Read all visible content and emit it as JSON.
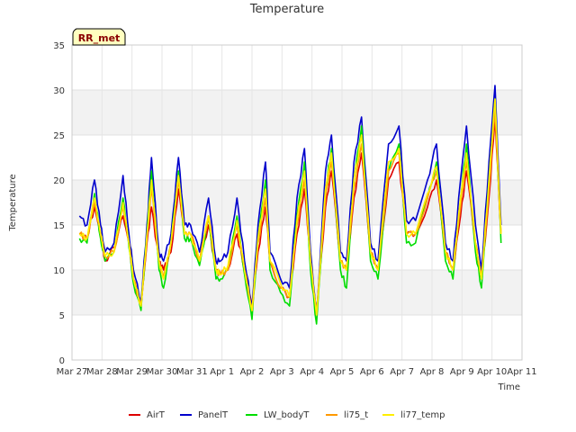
{
  "chart_data": {
    "type": "line",
    "title": "Temperature",
    "xlabel": "Time",
    "ylabel": "Temperature",
    "badge": "RR_met",
    "ylim": [
      0,
      35
    ],
    "yticks": [
      0,
      5,
      10,
      15,
      20,
      25,
      30,
      35
    ],
    "xlim": [
      0,
      15
    ],
    "xticks": [
      {
        "x": 0,
        "label": "Mar 27"
      },
      {
        "x": 1,
        "label": "Mar 28"
      },
      {
        "x": 2,
        "label": "Mar 29"
      },
      {
        "x": 3,
        "label": "Mar 30"
      },
      {
        "x": 4,
        "label": "Mar 31"
      },
      {
        "x": 5,
        "label": "Apr 1"
      },
      {
        "x": 6,
        "label": "Apr 2"
      },
      {
        "x": 7,
        "label": "Apr 3"
      },
      {
        "x": 8,
        "label": "Apr 4"
      },
      {
        "x": 9,
        "label": "Apr 5"
      },
      {
        "x": 10,
        "label": "Apr 6"
      },
      {
        "x": 11,
        "label": "Apr 7"
      },
      {
        "x": 12,
        "label": "Apr 8"
      },
      {
        "x": 13,
        "label": "Apr 9"
      },
      {
        "x": 14,
        "label": "Apr 10"
      },
      {
        "x": 15,
        "label": "Apr 11"
      }
    ],
    "grid": true,
    "legend_position": "bottom",
    "x_unit": "days since Mar 27",
    "series": [
      {
        "name": "AirT",
        "color": "#dd0000",
        "x": [
          0.25,
          0.5,
          0.75,
          0.95,
          1.1,
          1.4,
          1.7,
          1.9,
          2.05,
          2.3,
          2.5,
          2.65,
          2.9,
          3.05,
          3.3,
          3.55,
          3.75,
          3.95,
          4.25,
          4.55,
          4.8,
          4.95,
          5.2,
          5.5,
          5.75,
          6.0,
          6.2,
          6.45,
          6.6,
          6.95,
          7.25,
          7.5,
          7.75,
          7.95,
          8.15,
          8.45,
          8.65,
          8.95,
          9.15,
          9.4,
          9.65,
          9.95,
          10.2,
          10.55,
          10.9,
          11.15,
          11.45,
          11.85,
          12.15,
          12.45,
          12.7,
          12.95,
          13.15,
          13.45,
          13.65,
          13.9,
          14.1,
          14.3
        ],
        "y": [
          14,
          13.5,
          17,
          14,
          11,
          12.5,
          16,
          13,
          9,
          6,
          13,
          17,
          11,
          10,
          12,
          19,
          14,
          14,
          11,
          15,
          10,
          9.5,
          10,
          14,
          10,
          6,
          12,
          17,
          11,
          8,
          7,
          14,
          19,
          11,
          5,
          17,
          21,
          11,
          10,
          18,
          23,
          12,
          10,
          20,
          22,
          14,
          14,
          17,
          20,
          12,
          10,
          16,
          21,
          13,
          9,
          18,
          27,
          14
        ]
      },
      {
        "name": "PanelT",
        "color": "#0000cc",
        "x": [
          0.25,
          0.5,
          0.75,
          0.95,
          1.1,
          1.4,
          1.7,
          1.9,
          2.05,
          2.3,
          2.5,
          2.65,
          2.9,
          3.05,
          3.3,
          3.55,
          3.75,
          3.95,
          4.25,
          4.55,
          4.8,
          4.95,
          5.2,
          5.5,
          5.75,
          6.0,
          6.2,
          6.45,
          6.6,
          6.95,
          7.25,
          7.5,
          7.75,
          7.95,
          8.15,
          8.45,
          8.65,
          8.95,
          9.15,
          9.4,
          9.65,
          9.95,
          10.2,
          10.55,
          10.9,
          11.15,
          11.45,
          11.85,
          12.15,
          12.45,
          12.7,
          12.95,
          13.15,
          13.45,
          13.65,
          13.9,
          14.1,
          14.3
        ],
        "y": [
          16,
          15,
          20,
          15,
          12,
          13,
          20.5,
          14,
          10,
          6.5,
          15,
          22.5,
          12,
          11,
          14,
          22.5,
          15,
          15,
          12,
          18,
          11,
          11,
          12,
          18,
          11,
          6,
          15,
          22,
          12,
          9,
          8,
          18,
          23.5,
          12,
          5,
          21,
          25,
          12,
          11,
          22,
          27,
          13,
          11,
          24,
          26,
          15.5,
          15.5,
          20,
          24,
          13,
          11,
          20,
          26,
          15,
          10,
          22,
          30.5,
          15
        ]
      },
      {
        "name": "LW_bodyT",
        "color": "#00dd00",
        "x": [
          0.25,
          0.5,
          0.75,
          0.95,
          1.1,
          1.4,
          1.7,
          1.9,
          2.05,
          2.3,
          2.5,
          2.65,
          2.9,
          3.05,
          3.3,
          3.55,
          3.75,
          3.95,
          4.25,
          4.55,
          4.8,
          4.95,
          5.2,
          5.5,
          5.75,
          6.0,
          6.2,
          6.45,
          6.6,
          6.95,
          7.25,
          7.5,
          7.75,
          7.95,
          8.15,
          8.45,
          8.65,
          8.95,
          9.15,
          9.4,
          9.65,
          9.95,
          10.2,
          10.55,
          10.9,
          11.15,
          11.45,
          11.85,
          12.15,
          12.45,
          12.7,
          12.95,
          13.15,
          13.45,
          13.65,
          13.9,
          14.1,
          14.3
        ],
        "y": [
          13.5,
          13,
          18.5,
          13.5,
          11,
          12,
          18,
          12.5,
          8.5,
          5.5,
          14,
          21,
          10,
          8,
          13,
          21,
          13.5,
          13.5,
          10.5,
          16,
          9,
          9,
          10,
          16,
          9.5,
          4.5,
          13.5,
          20,
          10,
          7.5,
          6,
          16,
          22,
          10,
          4,
          19,
          23.5,
          10,
          8,
          20,
          26,
          11,
          9,
          21,
          24,
          13,
          13,
          18,
          22,
          11,
          9,
          18,
          24,
          12,
          8,
          20,
          29,
          13
        ]
      },
      {
        "name": "li75_t",
        "color": "#ff9900",
        "x": [
          0.25,
          0.5,
          0.75,
          0.95,
          1.1,
          1.4,
          1.7,
          1.9,
          2.05,
          2.3,
          2.5,
          2.65,
          2.9,
          3.05,
          3.3,
          3.55,
          3.75,
          3.95,
          4.25,
          4.55,
          4.8,
          4.95,
          5.2,
          5.5,
          5.75,
          6.0,
          6.2,
          6.45,
          6.6,
          6.95,
          7.25,
          7.5,
          7.75,
          7.95,
          8.15,
          8.45,
          8.65,
          8.95,
          9.15,
          9.4,
          9.65,
          9.95,
          10.2,
          10.55,
          10.9,
          11.15,
          11.45,
          11.85,
          12.15,
          12.45,
          12.7,
          12.95,
          13.15,
          13.45,
          13.65,
          13.9,
          14.1,
          14.3
        ],
        "y": [
          14,
          13.5,
          17.5,
          14,
          11.5,
          12,
          17,
          13,
          9,
          6,
          13.5,
          19,
          11,
          9,
          13,
          20,
          14,
          14,
          11,
          16,
          10,
          9.5,
          10,
          15,
          10,
          5.5,
          13,
          18,
          11,
          8,
          7,
          15,
          20,
          11,
          5,
          18,
          22,
          11,
          10,
          19,
          24,
          12,
          10,
          21,
          23,
          14,
          14,
          18,
          21,
          12,
          10,
          17,
          22,
          13,
          9,
          19,
          28,
          14
        ]
      },
      {
        "name": "li77_temp",
        "color": "#ffee00",
        "x": [
          0.25,
          0.5,
          0.75,
          0.95,
          1.1,
          1.4,
          1.7,
          1.9,
          2.05,
          2.3,
          2.5,
          2.65,
          2.9,
          3.05,
          3.3,
          3.55,
          3.75,
          3.95,
          4.25,
          4.55,
          4.8,
          4.95,
          5.2,
          5.5,
          5.75,
          6.0,
          6.2,
          6.45,
          6.6,
          6.95,
          7.25,
          7.5,
          7.75,
          7.95,
          8.15,
          8.45,
          8.65,
          8.95,
          9.15,
          9.4,
          9.65,
          9.95,
          10.2,
          10.55,
          10.9,
          11.15,
          11.45,
          11.85,
          12.15,
          12.45,
          12.7,
          12.95,
          13.15,
          13.45,
          13.65,
          13.9,
          14.1,
          14.3
        ],
        "y": [
          14,
          13.5,
          18,
          14,
          11.5,
          12,
          17.5,
          13,
          9,
          6,
          14,
          20,
          11,
          9,
          13,
          20.5,
          14,
          14,
          11,
          16,
          10,
          9.5,
          10.5,
          15.5,
          10,
          5.5,
          13.5,
          19,
          11,
          8.5,
          7,
          15.5,
          21,
          11,
          5,
          19,
          23,
          11,
          10,
          20,
          25,
          12,
          10,
          22,
          23.5,
          14,
          14,
          18.5,
          21.5,
          12,
          10,
          18,
          23,
          13,
          9,
          20,
          29,
          14
        ]
      }
    ]
  }
}
